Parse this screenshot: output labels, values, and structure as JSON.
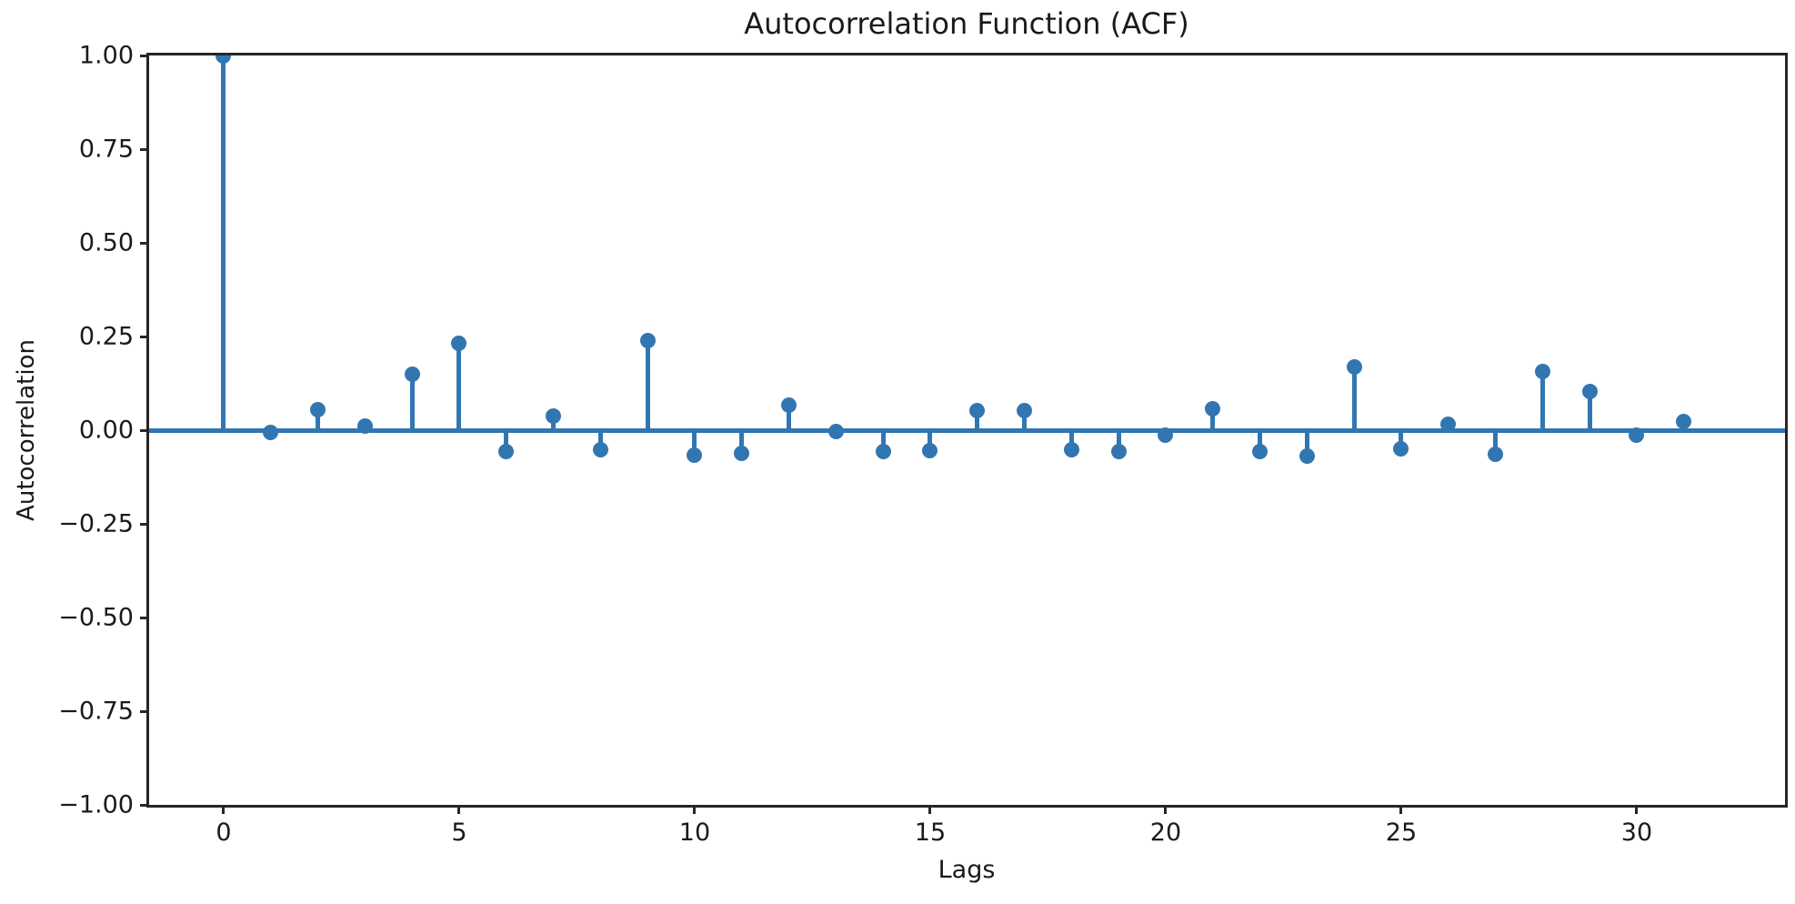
{
  "title": "Autocorrelation Function (ACF)",
  "xlabel": "Lags",
  "ylabel": "Autocorrelation",
  "colors": {
    "stem": "#3276b1",
    "spine": "#262626",
    "text": "#1a1a1a",
    "background": "#ffffff"
  },
  "chart_data": {
    "type": "stem",
    "title": "Autocorrelation Function (ACF)",
    "xlabel": "Lags",
    "ylabel": "Autocorrelation",
    "x": [
      0,
      1,
      2,
      3,
      4,
      5,
      6,
      7,
      8,
      9,
      10,
      11,
      12,
      13,
      14,
      15,
      16,
      17,
      18,
      19,
      20,
      21,
      22,
      23,
      24,
      25,
      26,
      27,
      28,
      29,
      30,
      31
    ],
    "values": [
      1.0,
      -0.005,
      0.055,
      0.01,
      0.15,
      0.232,
      -0.058,
      0.038,
      -0.052,
      0.24,
      -0.066,
      -0.062,
      0.066,
      -0.004,
      -0.058,
      -0.055,
      0.051,
      0.051,
      -0.053,
      -0.058,
      -0.014,
      0.058,
      -0.058,
      -0.068,
      0.168,
      -0.049,
      0.016,
      -0.064,
      0.157,
      0.103,
      -0.014,
      0.022
    ],
    "baseline_y": 0,
    "xlim": [
      -1.583,
      33.147
    ],
    "ylim": [
      -1.0,
      1.0
    ],
    "xticks": [
      0,
      5,
      10,
      15,
      20,
      25,
      30
    ],
    "xtick_labels": [
      "0",
      "5",
      "10",
      "15",
      "20",
      "25",
      "30"
    ],
    "yticks": [
      1.0,
      0.75,
      0.5,
      0.25,
      0.0,
      -0.25,
      -0.5,
      -0.75,
      -1.0
    ],
    "ytick_labels": [
      "1.00",
      "0.75",
      "0.50",
      "0.25",
      "0.00",
      "−0.25",
      "−0.50",
      "−0.75",
      "−1.00"
    ],
    "grid": false,
    "legend": null
  }
}
